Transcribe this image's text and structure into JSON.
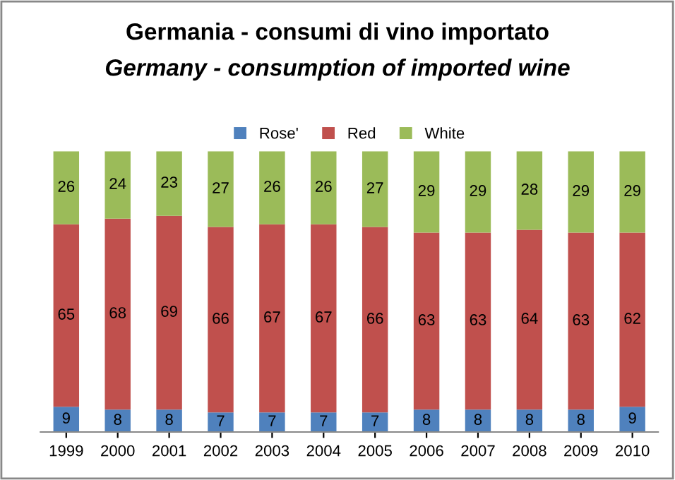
{
  "chart_data": {
    "type": "bar",
    "title": "Germania - consumi di vino importato",
    "subtitle": "Germany - consumption of imported wine",
    "categories": [
      "1999",
      "2000",
      "2001",
      "2002",
      "2003",
      "2004",
      "2005",
      "2006",
      "2007",
      "2008",
      "2009",
      "2010"
    ],
    "series": [
      {
        "name": "Rose'",
        "color": "#4f81bd",
        "values": [
          9,
          8,
          8,
          7,
          7,
          7,
          7,
          8,
          8,
          8,
          8,
          9
        ]
      },
      {
        "name": "Red",
        "color": "#c0504d",
        "values": [
          65,
          68,
          69,
          66,
          67,
          67,
          66,
          63,
          63,
          64,
          63,
          62
        ]
      },
      {
        "name": "White",
        "color": "#9bbb59",
        "values": [
          26,
          24,
          23,
          27,
          26,
          26,
          27,
          29,
          29,
          28,
          29,
          29
        ]
      }
    ],
    "stacked": true,
    "data_labels": true,
    "ylim": [
      0,
      100
    ],
    "tick_labels": "x",
    "grid": false,
    "legend": "top"
  }
}
